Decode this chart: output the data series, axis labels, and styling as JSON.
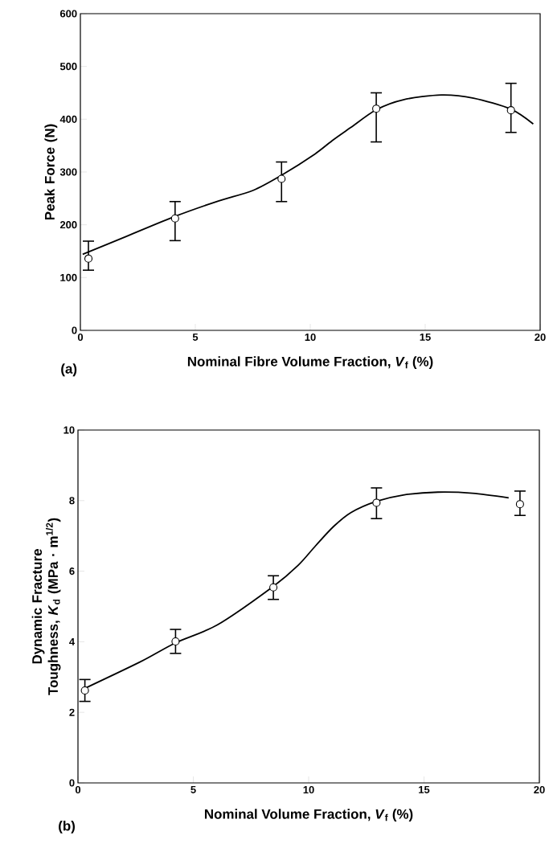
{
  "chart_data": [
    {
      "type": "scatter",
      "xlabel": "Nominal Fibre Volume Fraction, *V*$_{f}$ (%)",
      "ylabel": "Peak Force (N)",
      "annotations": [
        "(a)"
      ],
      "marker": "circle",
      "xlim": [
        0,
        20
      ],
      "ylim": [
        0,
        600
      ],
      "xticks": [
        0,
        5,
        10,
        15,
        20
      ],
      "yticks": [
        0,
        100,
        200,
        300,
        400,
        500,
        600
      ],
      "series": [
        {
          "color": "#000000",
          "x": [
            0.35,
            4.12,
            8.75,
            12.87,
            18.73
          ],
          "values": [
            136,
            212,
            287,
            420,
            417
          ],
          "errors": [
            [
              114,
              169
            ],
            [
              170,
              244
            ],
            [
              244,
              319
            ],
            [
              357,
              450
            ],
            [
              375,
              468
            ]
          ]
        },
        {
          "type": "line",
          "color": "#000000",
          "marker": "none",
          "x": [
            0.1,
            2,
            4.12,
            6,
            7.5,
            8.75,
            10.2,
            11,
            11.75,
            12.87,
            14.05,
            15.7,
            17.1,
            18.73,
            19.7
          ],
          "values": [
            144,
            178,
            216,
            245,
            265,
            294,
            334,
            361,
            384,
            418,
            437,
            446,
            440,
            419,
            391
          ]
        }
      ]
    },
    {
      "type": "scatter",
      "xlabel": "Nominal Volume Fraction, *V*$_{f}$ (%)",
      "ylabel": "Dynamic Fracture Toughness, *K*$_{d}$ (MPa · m$^{1/2}$)",
      "annotations": [
        "(b)"
      ],
      "marker": "circle",
      "xlim": [
        0,
        20
      ],
      "ylim": [
        0,
        10
      ],
      "xticks": [
        0,
        5,
        10,
        15,
        20
      ],
      "yticks": [
        0,
        2,
        4,
        6,
        8,
        10
      ],
      "series": [
        {
          "color": "#000000",
          "x": [
            0.3,
            4.23,
            8.47,
            12.94,
            19.16
          ],
          "values": [
            2.62,
            4.01,
            5.54,
            7.94,
            7.9
          ],
          "errors": [
            [
              2.31,
              2.93
            ],
            [
              3.67,
              4.35
            ],
            [
              5.2,
              5.87
            ],
            [
              7.49,
              8.36
            ],
            [
              7.58,
              8.27
            ]
          ]
        },
        {
          "type": "line",
          "color": "#000000",
          "marker": "none",
          "x": [
            0.3,
            2.7,
            4.23,
            6.05,
            8.47,
            9.55,
            10.3,
            11.07,
            11.83,
            12.94,
            14.1,
            15.6,
            17.1,
            18.67
          ],
          "values": [
            2.68,
            3.43,
            3.97,
            4.48,
            5.57,
            6.17,
            6.72,
            7.26,
            7.66,
            7.98,
            8.16,
            8.24,
            8.21,
            8.08
          ]
        }
      ]
    }
  ]
}
